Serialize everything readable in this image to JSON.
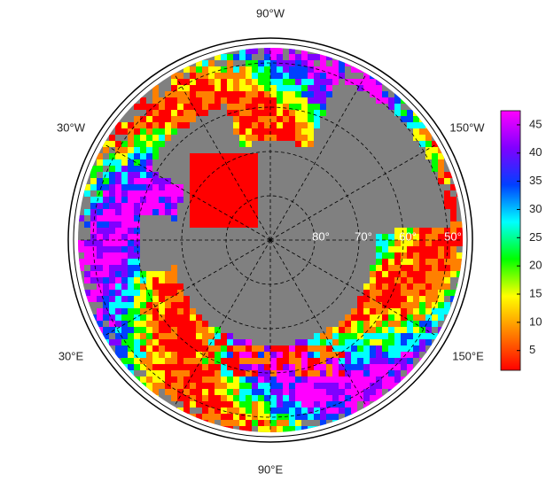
{
  "map": {
    "longitude_labels": [
      "90°W",
      "30°W",
      "150°W",
      "30°E",
      "150°E",
      "90°E"
    ],
    "latitude_labels": [
      "80°",
      "70°",
      "60°",
      "50°"
    ],
    "ocean_color": "#808080"
  },
  "colorbar": {
    "lim": [
      1.5,
      47.5
    ],
    "ticks": [
      5,
      10,
      15,
      20,
      25,
      30,
      35,
      40,
      45
    ],
    "colormap": [
      "#ff0000",
      "#ff8000",
      "#ffff00",
      "#00ff00",
      "#00ffff",
      "#0040ff",
      "#8000ff",
      "#ff00ff"
    ]
  }
}
